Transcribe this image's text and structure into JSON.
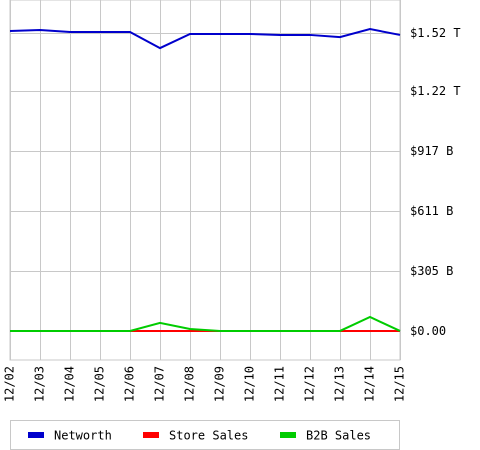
{
  "chart_data": {
    "type": "line",
    "categories": [
      "12/02",
      "12/03",
      "12/04",
      "12/05",
      "12/06",
      "12/07",
      "12/08",
      "12/09",
      "12/10",
      "12/11",
      "12/12",
      "12/13",
      "12/14",
      "12/15"
    ],
    "series": [
      {
        "name": "Networth",
        "color": "#0000cc",
        "values": [
          1528,
          1533,
          1523,
          1523,
          1523,
          1441,
          1513,
          1513,
          1513,
          1508,
          1508,
          1497,
          1538,
          1508
        ]
      },
      {
        "name": "Store Sales",
        "color": "#ff0000",
        "values": [
          0,
          0,
          0,
          0,
          0,
          0,
          0,
          0,
          0,
          0,
          0,
          0,
          0,
          0
        ]
      },
      {
        "name": "B2B Sales",
        "color": "#00cc00",
        "values": [
          0,
          0,
          0,
          0,
          0,
          41,
          10,
          0,
          0,
          0,
          0,
          0,
          71,
          0
        ]
      }
    ],
    "ylim": [
      -148,
      1686
    ],
    "yticks": [
      {
        "value": 0,
        "label": "$0.00"
      },
      {
        "value": 305,
        "label": "$305 B"
      },
      {
        "value": 611,
        "label": "$611 B"
      },
      {
        "value": 917,
        "label": "$917 B"
      },
      {
        "value": 1220,
        "label": "$1.22 T"
      },
      {
        "value": 1520,
        "label": "$1.52 T"
      }
    ],
    "grid": true
  }
}
